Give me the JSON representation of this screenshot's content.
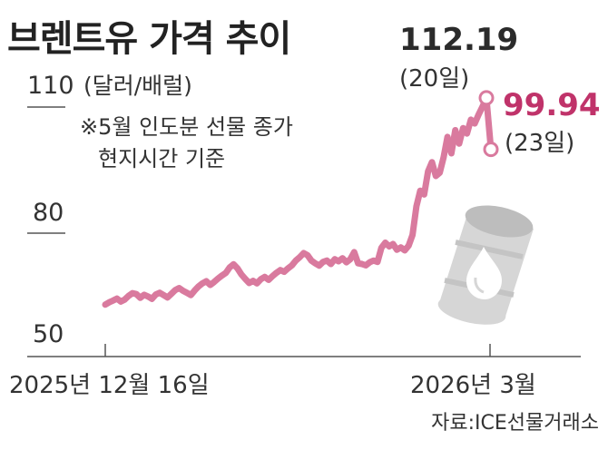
{
  "chart_data": {
    "type": "line",
    "title": "브렌트유 가격 추이",
    "unit": "(달러/배럴)",
    "notes": [
      "※5월 인도분 선물 종가",
      "현지시간 기준"
    ],
    "yticks": [
      "110",
      "80",
      "50"
    ],
    "ylim": [
      50,
      112
    ],
    "xlabels": [
      "2025년 12월 16일",
      "2026년 3월"
    ],
    "source": "자료:ICE선물거래소",
    "annotations": {
      "peak_value": "112.19",
      "peak_date": "(20일)",
      "last_value": "99.94",
      "last_date": "(23일)"
    },
    "series": [
      {
        "values": [
          58.9,
          59.6,
          60.1,
          60.7,
          59.8,
          60.4,
          61.5,
          62.3,
          62.0,
          60.9,
          61.8,
          61.3,
          60.6,
          61.9,
          62.4,
          61.7,
          61.0,
          62.1,
          63.2,
          63.8,
          63.0,
          62.4,
          61.7,
          63.1,
          64.3,
          65.2,
          65.8,
          64.7,
          65.6,
          66.6,
          67.5,
          68.3,
          69.9,
          70.8,
          69.6,
          67.8,
          66.5,
          65.3,
          65.9,
          65.2,
          66.4,
          67.1,
          66.2,
          67.3,
          68.3,
          69.1,
          68.6,
          69.6,
          70.5,
          71.9,
          72.9,
          74.1,
          73.5,
          71.9,
          71.1,
          70.4,
          71.5,
          71.9,
          70.9,
          72.3,
          71.7,
          72.6,
          71.4,
          72.3,
          74.4,
          71.1,
          70.9,
          70.5,
          71.4,
          71.9,
          71.5,
          75.7,
          77.2,
          76.1,
          76.8,
          75.1,
          75.8,
          74.9,
          76.3,
          79.5,
          86.4,
          90.1,
          89.2,
          94.7,
          96.9,
          93.6,
          94.4,
          98.1,
          102.9,
          99.0,
          104.5,
          101.3,
          105.0,
          103.7,
          107.0,
          106.1,
          108.2,
          110.1,
          112.19,
          99.94
        ]
      }
    ]
  }
}
